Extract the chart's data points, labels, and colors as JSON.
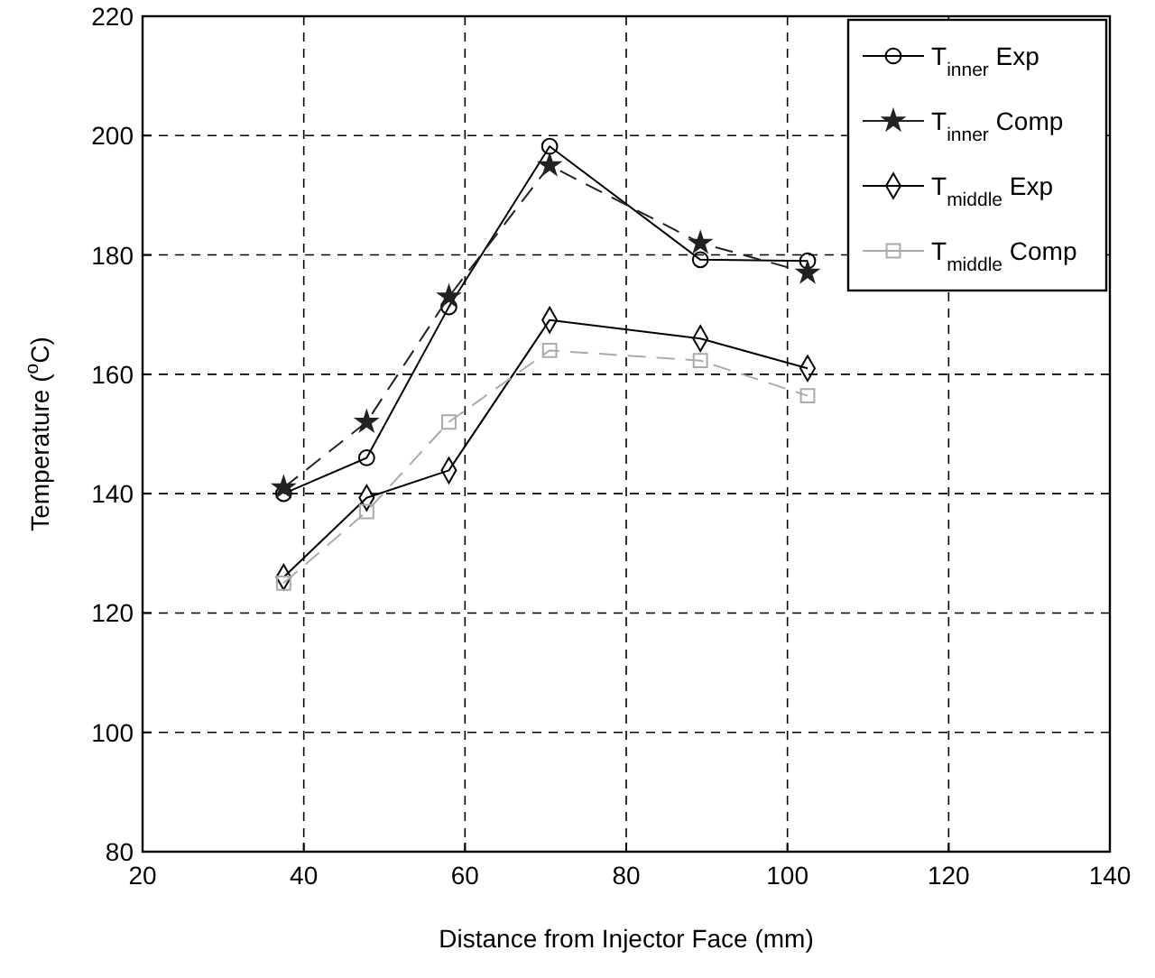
{
  "chart_data": {
    "type": "line",
    "xlabel": "Distance from Injector Face (mm)",
    "ylabel": "Temperature ($^{o}$C)",
    "xlim": [
      20,
      140
    ],
    "xticks": [
      20,
      40,
      60,
      80,
      100,
      120,
      140
    ],
    "ylim": [
      80,
      220
    ],
    "yticks": [
      80,
      100,
      120,
      140,
      160,
      180,
      200,
      220
    ],
    "grid": true,
    "legend": "top right",
    "series": [
      {
        "name": "T$_{inner}$ Exp",
        "color": "#000000",
        "marker": "circle",
        "line_style": "solid",
        "x": [
          37.5,
          47.8,
          58,
          70.5,
          89.2,
          102.5
        ],
        "values": [
          140,
          146,
          171.3,
          198.2,
          179.2,
          179
        ]
      },
      {
        "name": "T$_{inner}$ Comp",
        "color": "#222222",
        "marker": "star",
        "line_style": "dashed",
        "x": [
          37.5,
          47.8,
          58,
          70.5,
          89.2,
          102.5
        ],
        "values": [
          141,
          152,
          173,
          195,
          182,
          177
        ]
      },
      {
        "name": "T$_{middle}$ Exp",
        "color": "#000000",
        "marker": "diamond",
        "line_style": "solid",
        "x": [
          37.5,
          47.8,
          58,
          70.5,
          89.2,
          102.5
        ],
        "values": [
          126,
          139.3,
          143.9,
          169.1,
          166,
          161
        ]
      },
      {
        "name": "T$_{middle}$ Comp",
        "color": "#aaaaaa",
        "marker": "square",
        "line_style": "dashed",
        "x": [
          37.5,
          47.8,
          58,
          70.5,
          89.2,
          102.5
        ],
        "values": [
          125,
          137,
          152,
          164,
          162.3,
          156.4
        ]
      }
    ]
  }
}
